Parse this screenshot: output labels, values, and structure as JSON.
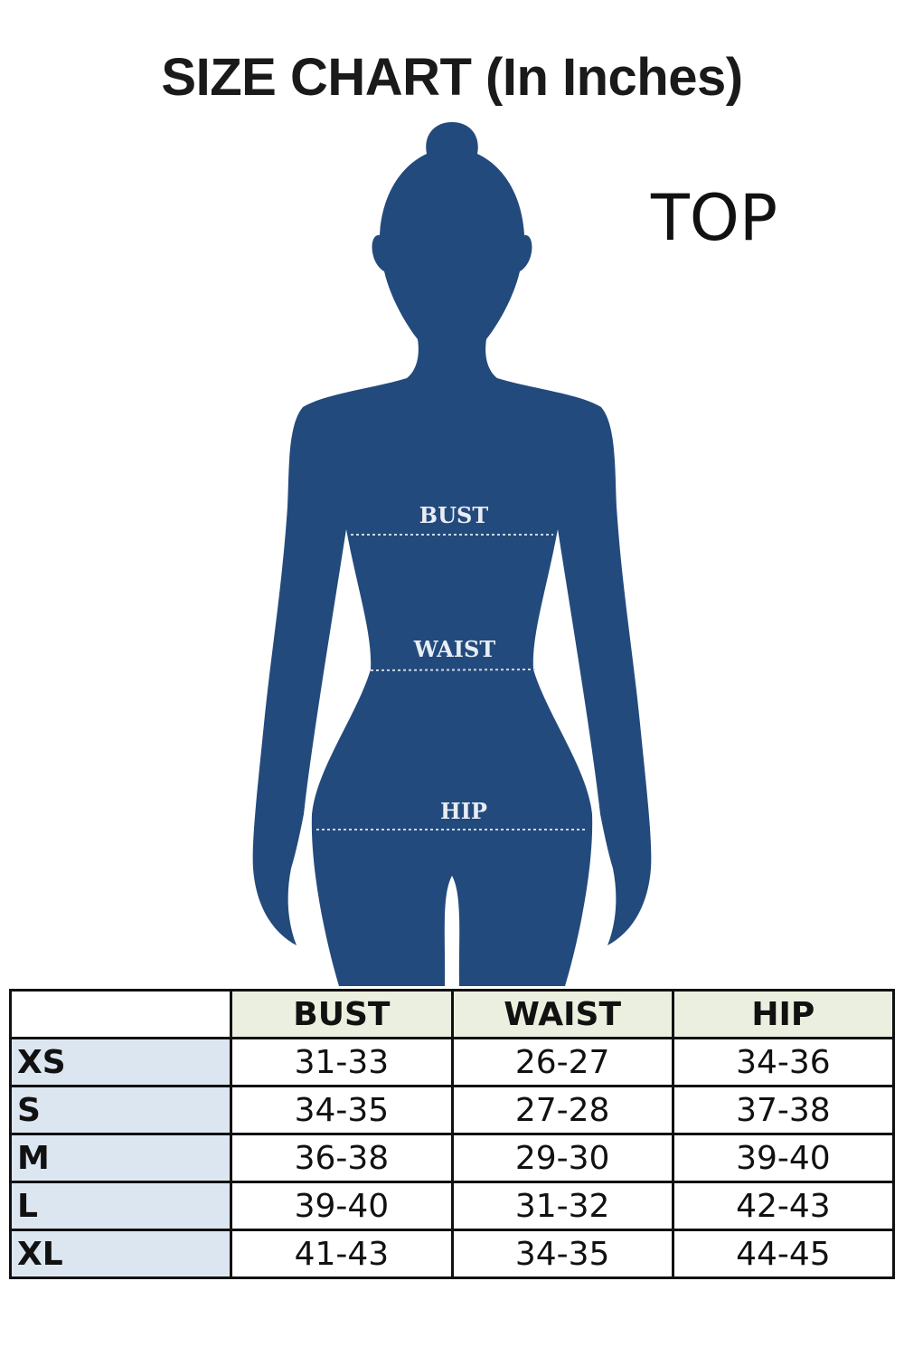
{
  "title": "SIZE CHART (In Inches)",
  "garment_label": "TOP",
  "silhouette_color": "#234a7c",
  "measure_labels": {
    "bust": "BUST",
    "waist": "WAIST",
    "hip": "HIP"
  },
  "table": {
    "headers": [
      "",
      "BUST",
      "WAIST",
      "HIP"
    ],
    "rows": [
      {
        "size": "XS",
        "bust": "31-33",
        "waist": "26-27",
        "hip": "34-36"
      },
      {
        "size": "S",
        "bust": "34-35",
        "waist": "27-28",
        "hip": "37-38"
      },
      {
        "size": "M",
        "bust": "36-38",
        "waist": "29-30",
        "hip": "39-40"
      },
      {
        "size": "L",
        "bust": "39-40",
        "waist": "31-32",
        "hip": "42-43"
      },
      {
        "size": "XL",
        "bust": "41-43",
        "waist": "34-35",
        "hip": "44-45"
      }
    ]
  }
}
